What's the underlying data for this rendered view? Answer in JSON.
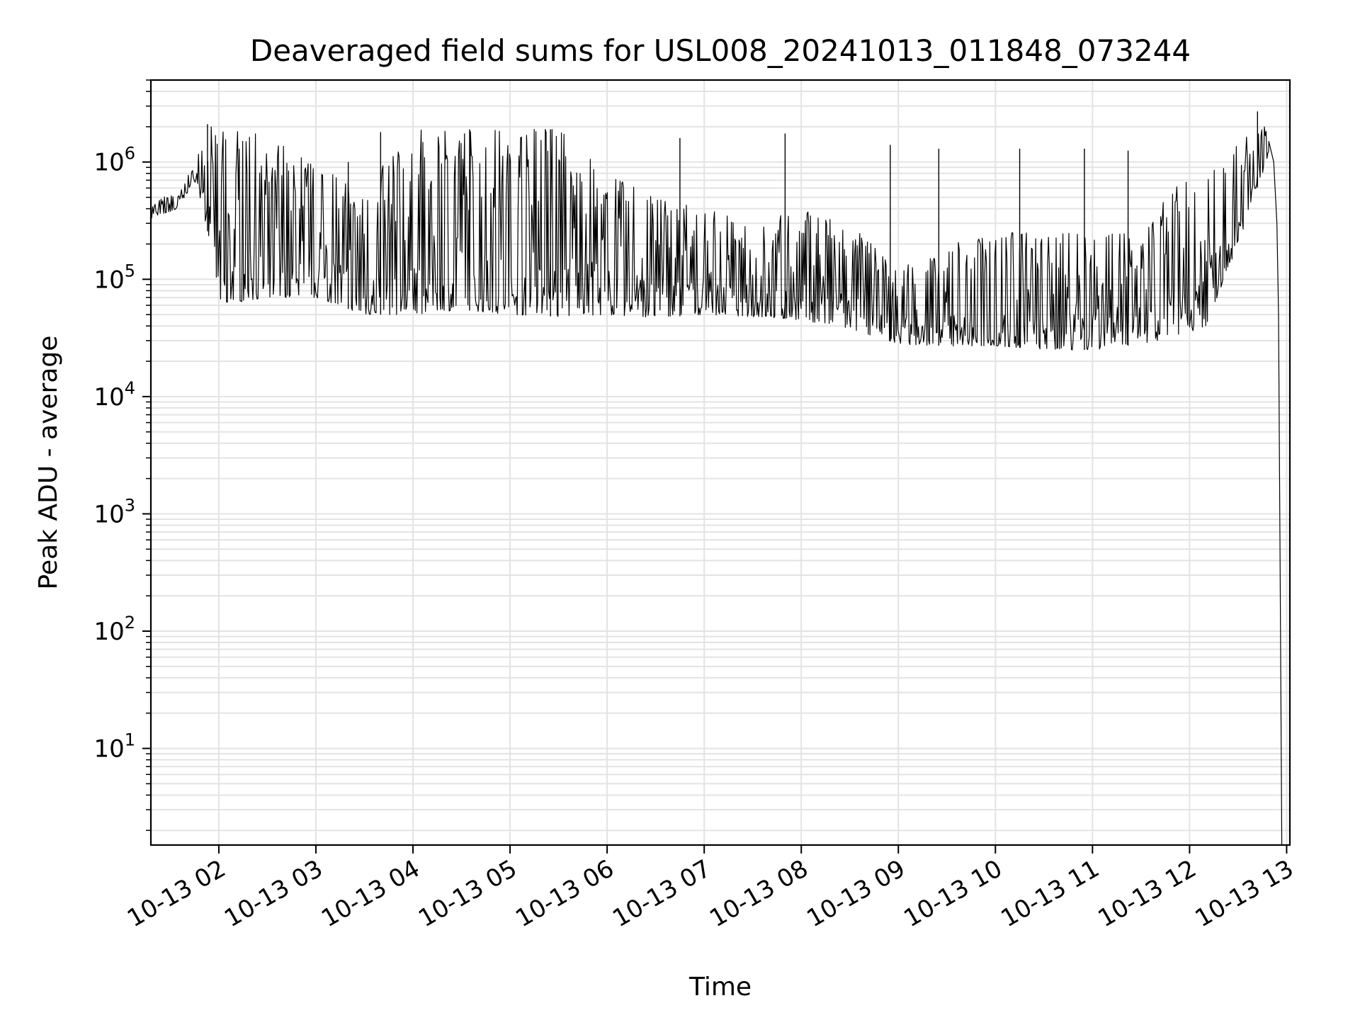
{
  "chart_data": {
    "type": "line",
    "title": "Deaveraged field sums for USL008_20241013_011848_073244",
    "xlabel": "Time",
    "ylabel": "Peak ADU - average",
    "yscale": "log",
    "ylim": [
      1.5,
      5000000
    ],
    "xlim": [
      "2024-10-13 01:18",
      "2024-10-13 13:02"
    ],
    "grid": true,
    "x_ticks": [
      {
        "t": "2024-10-13 02:00",
        "label": "10-13 02"
      },
      {
        "t": "2024-10-13 03:00",
        "label": "10-13 03"
      },
      {
        "t": "2024-10-13 04:00",
        "label": "10-13 04"
      },
      {
        "t": "2024-10-13 05:00",
        "label": "10-13 05"
      },
      {
        "t": "2024-10-13 06:00",
        "label": "10-13 06"
      },
      {
        "t": "2024-10-13 07:00",
        "label": "10-13 07"
      },
      {
        "t": "2024-10-13 08:00",
        "label": "10-13 08"
      },
      {
        "t": "2024-10-13 09:00",
        "label": "10-13 09"
      },
      {
        "t": "2024-10-13 10:00",
        "label": "10-13 10"
      },
      {
        "t": "2024-10-13 11:00",
        "label": "10-13 11"
      },
      {
        "t": "2024-10-13 12:00",
        "label": "10-13 12"
      },
      {
        "t": "2024-10-13 13:00",
        "label": "10-13 13"
      }
    ],
    "y_ticks": [
      {
        "value": 10,
        "base": "10",
        "exp": "1"
      },
      {
        "value": 100,
        "base": "10",
        "exp": "2"
      },
      {
        "value": 1000,
        "base": "10",
        "exp": "3"
      },
      {
        "value": 10000,
        "base": "10",
        "exp": "4"
      },
      {
        "value": 100000,
        "base": "10",
        "exp": "5"
      },
      {
        "value": 1000000,
        "base": "10",
        "exp": "6"
      }
    ],
    "series": [
      {
        "color": "#000000",
        "envelope": [
          {
            "t": "2024-10-13 01:18",
            "low": 330000,
            "high": 500000
          },
          {
            "t": "2024-10-13 01:35",
            "low": 400000,
            "high": 520000
          },
          {
            "t": "2024-10-13 01:45",
            "low": 700000,
            "high": 1000000
          },
          {
            "t": "2024-10-13 01:55",
            "low": 200000,
            "high": 2000000
          },
          {
            "t": "2024-10-13 02:00",
            "low": 60000,
            "high": 1900000
          },
          {
            "t": "2024-10-13 02:30",
            "low": 70000,
            "high": 1700000
          },
          {
            "t": "2024-10-13 03:00",
            "low": 70000,
            "high": 900000
          },
          {
            "t": "2024-10-13 03:30",
            "low": 50000,
            "high": 600000
          },
          {
            "t": "2024-10-13 04:00",
            "low": 50000,
            "high": 1900000
          },
          {
            "t": "2024-10-13 04:30",
            "low": 55000,
            "high": 1800000
          },
          {
            "t": "2024-10-13 05:00",
            "low": 50000,
            "high": 1900000
          },
          {
            "t": "2024-10-13 05:30",
            "low": 48000,
            "high": 1900000
          },
          {
            "t": "2024-10-13 06:00",
            "low": 50000,
            "high": 800000
          },
          {
            "t": "2024-10-13 06:30",
            "low": 47000,
            "high": 500000
          },
          {
            "t": "2024-10-13 07:00",
            "low": 50000,
            "high": 400000
          },
          {
            "t": "2024-10-13 07:30",
            "low": 48000,
            "high": 300000
          },
          {
            "t": "2024-10-13 08:00",
            "low": 45000,
            "high": 400000
          },
          {
            "t": "2024-10-13 08:30",
            "low": 38000,
            "high": 300000
          },
          {
            "t": "2024-10-13 09:00",
            "low": 28000,
            "high": 120000
          },
          {
            "t": "2024-10-13 09:30",
            "low": 27000,
            "high": 200000
          },
          {
            "t": "2024-10-13 10:00",
            "low": 27000,
            "high": 250000
          },
          {
            "t": "2024-10-13 10:30",
            "low": 25000,
            "high": 250000
          },
          {
            "t": "2024-10-13 11:00",
            "low": 25000,
            "high": 250000
          },
          {
            "t": "2024-10-13 11:30",
            "low": 28000,
            "high": 250000
          },
          {
            "t": "2024-10-13 11:50",
            "low": 30000,
            "high": 600000
          },
          {
            "t": "2024-10-13 12:10",
            "low": 40000,
            "high": 800000
          },
          {
            "t": "2024-10-13 12:30",
            "low": 200000,
            "high": 1500000
          },
          {
            "t": "2024-10-13 12:45",
            "low": 800000,
            "high": 2200000
          },
          {
            "t": "2024-10-13 12:49",
            "low": 1200000,
            "high": 1600000
          }
        ],
        "spikes": [
          {
            "t": "2024-10-13 01:53",
            "value": 2100000
          },
          {
            "t": "2024-10-13 03:20",
            "value": 1000000
          },
          {
            "t": "2024-10-13 03:40",
            "value": 1800000
          },
          {
            "t": "2024-10-13 04:35",
            "value": 1900000
          },
          {
            "t": "2024-10-13 05:25",
            "value": 1900000
          },
          {
            "t": "2024-10-13 06:45",
            "value": 1600000
          },
          {
            "t": "2024-10-13 07:50",
            "value": 1750000
          },
          {
            "t": "2024-10-13 08:55",
            "value": 1400000
          },
          {
            "t": "2024-10-13 09:25",
            "value": 1300000
          },
          {
            "t": "2024-10-13 10:15",
            "value": 1300000
          },
          {
            "t": "2024-10-13 10:55",
            "value": 1300000
          },
          {
            "t": "2024-10-13 11:22",
            "value": 1250000
          },
          {
            "t": "2024-10-13 12:42",
            "value": 2700000
          }
        ],
        "final_drop": [
          {
            "t": "2024-10-13 12:49",
            "value": 1500000
          },
          {
            "t": "2024-10-13 12:52",
            "value": 1000000
          },
          {
            "t": "2024-10-13 12:54",
            "value": 300000
          },
          {
            "t": "2024-10-13 12:55",
            "value": 50000
          },
          {
            "t": "2024-10-13 12:56",
            "value": 300
          },
          {
            "t": "2024-10-13 12:57",
            "value": 1.5
          }
        ]
      }
    ]
  }
}
